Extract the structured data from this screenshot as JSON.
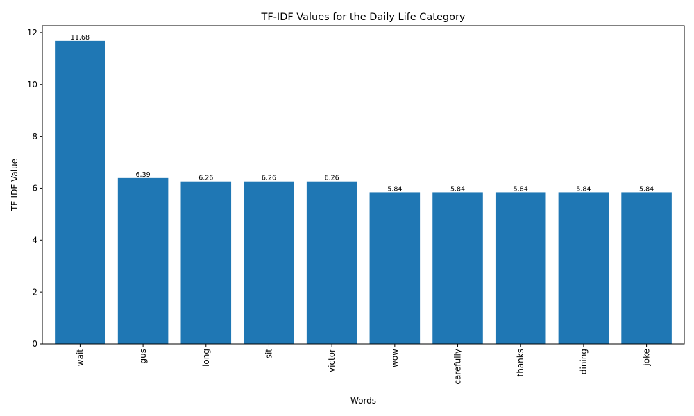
{
  "chart_data": {
    "type": "bar",
    "title": "TF-IDF Values for the Daily Life Category",
    "xlabel": "Words",
    "ylabel": "TF-IDF Value",
    "categories": [
      "wait",
      "gus",
      "long",
      "sit",
      "victor",
      "wow",
      "carefully",
      "thanks",
      "dining",
      "joke"
    ],
    "values": [
      11.68,
      6.39,
      6.26,
      6.26,
      6.26,
      5.84,
      5.84,
      5.84,
      5.84,
      5.84
    ],
    "value_labels": [
      "11.68",
      "6.39",
      "6.26",
      "6.26",
      "6.26",
      "5.84",
      "5.84",
      "5.84",
      "5.84",
      "5.84"
    ],
    "ylim": [
      0,
      12.264
    ],
    "yticks": [
      0,
      2,
      4,
      6,
      8,
      10,
      12
    ],
    "grid": false,
    "legend": "none",
    "x_tick_rotation": "vertical",
    "bar_color": "#1f77b4"
  }
}
